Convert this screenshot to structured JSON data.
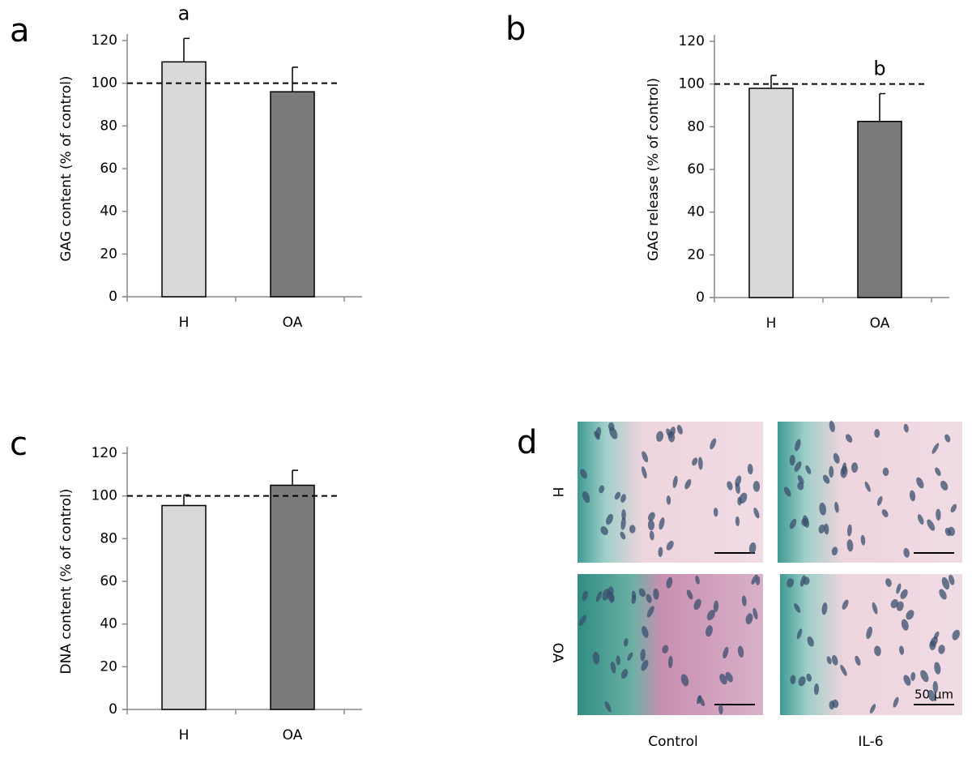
{
  "chart_data": [
    {
      "type": "bar",
      "panel_label": "a",
      "ylabel": "GAG content (% of control)",
      "categories": [
        "H",
        "OA"
      ],
      "values": [
        110,
        96
      ],
      "errors": [
        11,
        11.5
      ],
      "colors": [
        "#d9d9d9",
        "#7a7a7a"
      ],
      "ylim": [
        0,
        120
      ],
      "yticks": [
        0,
        20,
        40,
        60,
        80,
        100,
        120
      ],
      "reference_line": 100,
      "significance": [
        "a",
        null
      ]
    },
    {
      "type": "bar",
      "panel_label": "b",
      "ylabel": "GAG release (% of control)",
      "categories": [
        "H",
        "OA"
      ],
      "values": [
        98,
        82.5
      ],
      "errors": [
        6,
        13
      ],
      "colors": [
        "#d9d9d9",
        "#7a7a7a"
      ],
      "ylim": [
        0,
        120
      ],
      "yticks": [
        0,
        20,
        40,
        60,
        80,
        100,
        120
      ],
      "reference_line": 100,
      "significance": [
        null,
        "b"
      ]
    },
    {
      "type": "bar",
      "panel_label": "c",
      "ylabel": "DNA content (% of control)",
      "categories": [
        "H",
        "OA"
      ],
      "values": [
        95.5,
        105
      ],
      "errors": [
        5,
        7
      ],
      "colors": [
        "#d9d9d9",
        "#7a7a7a"
      ],
      "ylim": [
        0,
        120
      ],
      "yticks": [
        0,
        20,
        40,
        60,
        80,
        100,
        120
      ],
      "reference_line": 100,
      "significance": [
        null,
        null
      ]
    }
  ],
  "panel_d": {
    "panel_label": "d",
    "rows": [
      "H",
      "OA"
    ],
    "columns": [
      "Control",
      "IL-6"
    ],
    "scale_bar": "50 µm"
  }
}
